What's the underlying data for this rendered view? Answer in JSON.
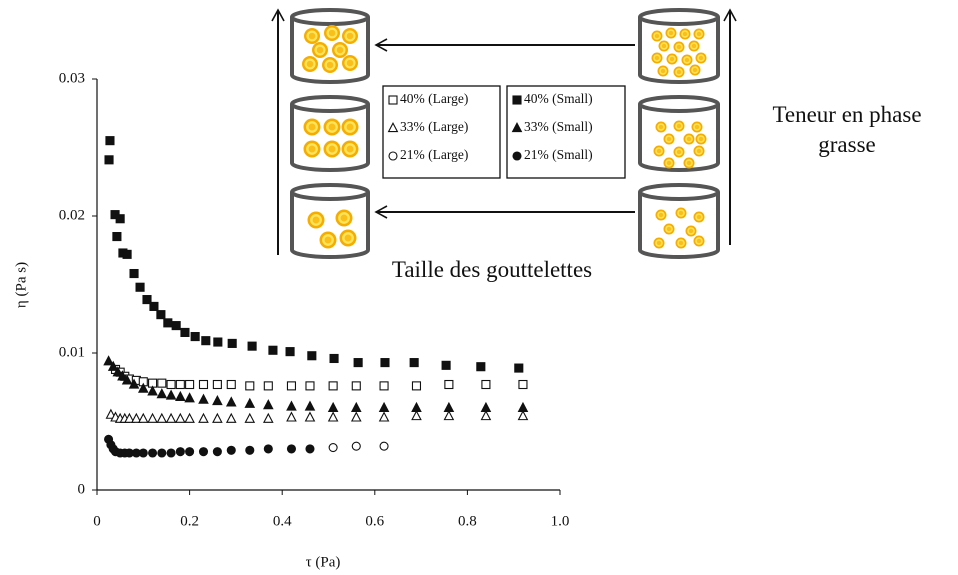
{
  "chart_data": {
    "type": "scatter",
    "x_label": "τ (Pa)",
    "y_label": "η (Pa s)",
    "xlim": [
      0,
      1
    ],
    "xticks": [
      0,
      0.2,
      0.4,
      0.6,
      0.8,
      {
        "value": 1,
        "label": "1.0"
      }
    ],
    "ylim": [
      0,
      0.03
    ],
    "yticks": [
      0,
      0.01,
      0.02,
      0.03
    ],
    "annotations": [
      "Taille des gouttelettes",
      "Teneur en phase grasse"
    ],
    "series": [
      {
        "name": "40% (Large)",
        "color": "#111111",
        "marker": "square",
        "filled": false,
        "x": [
          0.04,
          0.05,
          0.06,
          0.07,
          0.085,
          0.1,
          0.12,
          0.14,
          0.16,
          0.18,
          0.2,
          0.23,
          0.26,
          0.29,
          0.33,
          0.37,
          0.42,
          0.46,
          0.51,
          0.56,
          0.62,
          0.69,
          0.76,
          0.84,
          0.92
        ],
        "values": [
          0.0088,
          0.0086,
          0.0083,
          0.0081,
          0.008,
          0.0079,
          0.0078,
          0.0078,
          0.0077,
          0.0077,
          0.0077,
          0.0077,
          0.0077,
          0.0077,
          0.0076,
          0.0076,
          0.0076,
          0.0076,
          0.0076,
          0.0076,
          0.0076,
          0.0076,
          0.0077,
          0.0077,
          0.0077
        ]
      },
      {
        "name": "33% (Large)",
        "color": "#111111",
        "marker": "triangle",
        "filled": false,
        "x": [
          0.03,
          0.04,
          0.05,
          0.06,
          0.07,
          0.085,
          0.1,
          0.12,
          0.14,
          0.16,
          0.18,
          0.2,
          0.23,
          0.26,
          0.29,
          0.33,
          0.37,
          0.42,
          0.46,
          0.51,
          0.56,
          0.62,
          0.69,
          0.76,
          0.84,
          0.92
        ],
        "values": [
          0.0055,
          0.0053,
          0.0052,
          0.0052,
          0.0052,
          0.0052,
          0.0052,
          0.0052,
          0.0052,
          0.0052,
          0.0052,
          0.0052,
          0.0052,
          0.0052,
          0.0052,
          0.0052,
          0.0052,
          0.0053,
          0.0053,
          0.0053,
          0.0053,
          0.0053,
          0.0054,
          0.0054,
          0.0054,
          0.0054
        ]
      },
      {
        "name": "21% (Large)",
        "color": "#111111",
        "marker": "circle",
        "filled": false,
        "x": [
          0.51,
          0.56,
          0.62
        ],
        "values": [
          0.0031,
          0.0032,
          0.0032
        ]
      },
      {
        "name": "40% (Small)",
        "color": "#111111",
        "marker": "square",
        "filled": true,
        "x": [
          0.028,
          0.026,
          0.039,
          0.043,
          0.05,
          0.056,
          0.065,
          0.08,
          0.093,
          0.108,
          0.123,
          0.138,
          0.153,
          0.171,
          0.19,
          0.212,
          0.235,
          0.261,
          0.292,
          0.335,
          0.38,
          0.417,
          0.464,
          0.512,
          0.564,
          0.622,
          0.685,
          0.754,
          0.829,
          0.911
        ],
        "values": [
          0.0255,
          0.0241,
          0.0201,
          0.0185,
          0.0198,
          0.0173,
          0.0172,
          0.0158,
          0.0148,
          0.0139,
          0.0134,
          0.0128,
          0.0122,
          0.012,
          0.0115,
          0.0112,
          0.0109,
          0.0108,
          0.0107,
          0.0105,
          0.0102,
          0.0101,
          0.0098,
          0.0096,
          0.0093,
          0.0093,
          0.0093,
          0.0091,
          0.009,
          0.0089
        ]
      },
      {
        "name": "33% (Small)",
        "color": "#111111",
        "marker": "triangle",
        "filled": true,
        "x": [
          0.025,
          0.035,
          0.045,
          0.055,
          0.065,
          0.08,
          0.1,
          0.12,
          0.14,
          0.16,
          0.18,
          0.2,
          0.23,
          0.26,
          0.29,
          0.33,
          0.37,
          0.42,
          0.46,
          0.51,
          0.56,
          0.62,
          0.69,
          0.76,
          0.84,
          0.92
        ],
        "values": [
          0.0094,
          0.009,
          0.0086,
          0.0083,
          0.008,
          0.0077,
          0.0074,
          0.0072,
          0.007,
          0.0069,
          0.0068,
          0.0067,
          0.0066,
          0.0065,
          0.0064,
          0.0063,
          0.0062,
          0.0061,
          0.0061,
          0.006,
          0.006,
          0.006,
          0.006,
          0.006,
          0.006,
          0.006
        ]
      },
      {
        "name": "21% (Small)",
        "color": "#111111",
        "marker": "circle",
        "filled": true,
        "x": [
          0.025,
          0.03,
          0.035,
          0.04,
          0.05,
          0.06,
          0.07,
          0.085,
          0.1,
          0.12,
          0.14,
          0.16,
          0.18,
          0.2,
          0.23,
          0.26,
          0.29,
          0.33,
          0.37,
          0.42,
          0.46
        ],
        "values": [
          0.0037,
          0.0033,
          0.003,
          0.0028,
          0.0027,
          0.0027,
          0.0027,
          0.0027,
          0.0027,
          0.0027,
          0.0027,
          0.0027,
          0.0028,
          0.0028,
          0.0028,
          0.0028,
          0.0029,
          0.0029,
          0.003,
          0.003,
          0.003
        ]
      }
    ]
  }
}
